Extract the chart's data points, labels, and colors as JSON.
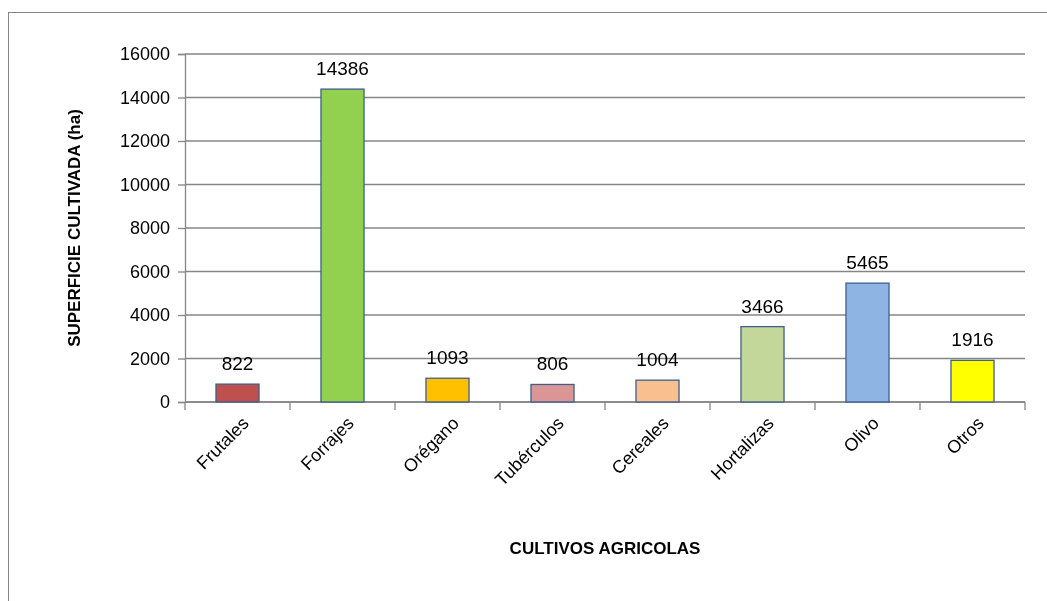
{
  "chart_data": {
    "type": "bar",
    "xlabel": "CULTIVOS AGRICOLAS",
    "ylabel": "SUPERFICIE CULTIVADA (ha)",
    "categories": [
      "Frutales",
      "Forrajes",
      "Orégano",
      "Tubérculos",
      "Cereales",
      "Hortalizas",
      "Olivo",
      "Otros"
    ],
    "values": [
      822,
      14386,
      1093,
      806,
      1004,
      3466,
      5465,
      1916
    ],
    "colors": [
      "#c0504d",
      "#92d050",
      "#ffc000",
      "#da9694",
      "#fabf8f",
      "#c4d79b",
      "#8db4e2",
      "#ffff00"
    ],
    "ylim": [
      0,
      16000
    ],
    "yticks": [
      0,
      2000,
      4000,
      6000,
      8000,
      10000,
      12000,
      14000,
      16000
    ],
    "grid": "y",
    "data_labels": true
  }
}
